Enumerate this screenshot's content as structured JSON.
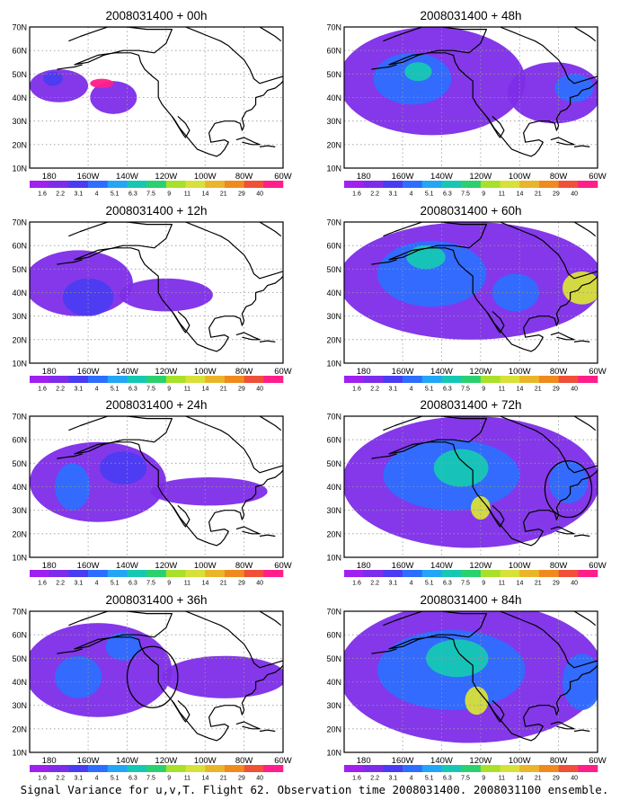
{
  "caption": "Signal Variance for u,v,T. Flight 62. Observation time 2008031400. 2008031100 ensemble.",
  "colorbar": {
    "labels": [
      "1.6",
      "2.2",
      "3.1",
      "4",
      "5.1",
      "6.3",
      "7.5",
      "9",
      "11",
      "14",
      "21",
      "29",
      "40"
    ],
    "colors": [
      "#a020f0",
      "#7d2de8",
      "#4a3cf2",
      "#2d6eff",
      "#22a6f5",
      "#16c8b4",
      "#2ad16e",
      "#a8e02a",
      "#d8e03a",
      "#e9b52a",
      "#f08a1e",
      "#f05038",
      "#ff1e8a"
    ]
  },
  "map_colors": {
    "ocean_pale": "#ffffff",
    "coast": "#000000",
    "grid": "#999999"
  },
  "chart_data": [
    {
      "type": "heatmap",
      "title": "2008031400 + 00h",
      "x_tick_labels": [
        "180",
        "160W",
        "140W",
        "120W",
        "100W",
        "80W",
        "60W"
      ],
      "y_tick_labels": [
        "10N",
        "20N",
        "30N",
        "40N",
        "50N",
        "60N",
        "70N"
      ],
      "xlim": [
        170,
        300
      ],
      "ylim": [
        10,
        70
      ],
      "features": [
        {
          "lon": 185,
          "lat": 45,
          "rlon": 15,
          "rlat": 7,
          "level": 1
        },
        {
          "lon": 182,
          "lat": 48,
          "rlon": 5,
          "rlat": 3,
          "level": 2
        },
        {
          "lon": 213,
          "lat": 40,
          "rlon": 12,
          "rlat": 7,
          "level": 1
        },
        {
          "lon": 207,
          "lat": 46,
          "rlon": 6,
          "rlat": 2,
          "level": 12
        }
      ]
    },
    {
      "type": "heatmap",
      "title": "2008031400 + 12h",
      "x_tick_labels": [
        "180",
        "160W",
        "140W",
        "120W",
        "100W",
        "80W",
        "60W"
      ],
      "y_tick_labels": [
        "10N",
        "20N",
        "30N",
        "40N",
        "50N",
        "60N",
        "70N"
      ],
      "xlim": [
        170,
        300
      ],
      "ylim": [
        10,
        70
      ],
      "features": [
        {
          "lon": 195,
          "lat": 44,
          "rlon": 28,
          "rlat": 14,
          "level": 1
        },
        {
          "lon": 240,
          "lat": 39,
          "rlon": 24,
          "rlat": 7,
          "level": 1
        },
        {
          "lon": 200,
          "lat": 38,
          "rlon": 13,
          "rlat": 8,
          "level": 2
        }
      ]
    },
    {
      "type": "heatmap",
      "title": "2008031400 + 24h",
      "x_tick_labels": [
        "180",
        "160W",
        "140W",
        "120W",
        "100W",
        "80W",
        "60W"
      ],
      "y_tick_labels": [
        "10N",
        "20N",
        "30N",
        "40N",
        "50N",
        "60N",
        "70N"
      ],
      "xlim": [
        170,
        300
      ],
      "ylim": [
        10,
        70
      ],
      "features": [
        {
          "lon": 205,
          "lat": 42,
          "rlon": 35,
          "rlat": 17,
          "level": 1
        },
        {
          "lon": 262,
          "lat": 38,
          "rlon": 30,
          "rlat": 6,
          "level": 1
        },
        {
          "lon": 192,
          "lat": 40,
          "rlon": 9,
          "rlat": 10,
          "level": 3
        },
        {
          "lon": 218,
          "lat": 48,
          "rlon": 12,
          "rlat": 7,
          "level": 2
        }
      ]
    },
    {
      "type": "heatmap",
      "title": "2008031400 + 36h",
      "x_tick_labels": [
        "180",
        "160W",
        "140W",
        "120W",
        "100W",
        "80W",
        "60W"
      ],
      "y_tick_labels": [
        "10N",
        "20N",
        "30N",
        "40N",
        "50N",
        "60N",
        "70N"
      ],
      "xlim": [
        170,
        300
      ],
      "ylim": [
        10,
        70
      ],
      "features": [
        {
          "lon": 205,
          "lat": 45,
          "rlon": 38,
          "rlat": 20,
          "level": 1
        },
        {
          "lon": 270,
          "lat": 42,
          "rlon": 32,
          "rlat": 9,
          "level": 1
        },
        {
          "lon": 195,
          "lat": 42,
          "rlon": 12,
          "rlat": 9,
          "level": 3
        },
        {
          "lon": 218,
          "lat": 55,
          "rlon": 9,
          "rlat": 6,
          "level": 3
        }
      ],
      "circle": {
        "lon": 233,
        "lat": 42,
        "rlon": 13,
        "rlat": 13
      }
    },
    {
      "type": "heatmap",
      "title": "2008031400 + 48h",
      "x_tick_labels": [
        "180",
        "160W",
        "140W",
        "120W",
        "100W",
        "80W",
        "60W"
      ],
      "y_tick_labels": [
        "10N",
        "20N",
        "30N",
        "40N",
        "50N",
        "60N",
        "70N"
      ],
      "xlim": [
        170,
        300
      ],
      "ylim": [
        10,
        70
      ],
      "features": [
        {
          "lon": 215,
          "lat": 47,
          "rlon": 48,
          "rlat": 23,
          "level": 1
        },
        {
          "lon": 278,
          "lat": 42,
          "rlon": 24,
          "rlat": 13,
          "level": 1
        },
        {
          "lon": 205,
          "lat": 48,
          "rlon": 20,
          "rlat": 11,
          "level": 3
        },
        {
          "lon": 208,
          "lat": 51,
          "rlon": 7,
          "rlat": 4,
          "level": 5
        },
        {
          "lon": 288,
          "lat": 44,
          "rlon": 10,
          "rlat": 6,
          "level": 3
        }
      ]
    },
    {
      "type": "heatmap",
      "title": "2008031400 + 60h",
      "x_tick_labels": [
        "180",
        "160W",
        "140W",
        "120W",
        "100W",
        "80W",
        "60W"
      ],
      "y_tick_labels": [
        "10N",
        "20N",
        "30N",
        "40N",
        "50N",
        "60N",
        "70N"
      ],
      "xlim": [
        170,
        300
      ],
      "ylim": [
        10,
        70
      ],
      "features": [
        {
          "lon": 235,
          "lat": 45,
          "rlon": 68,
          "rlat": 25,
          "level": 1
        },
        {
          "lon": 215,
          "lat": 48,
          "rlon": 28,
          "rlat": 14,
          "level": 3
        },
        {
          "lon": 212,
          "lat": 55,
          "rlon": 10,
          "rlat": 5,
          "level": 5
        },
        {
          "lon": 292,
          "lat": 42,
          "rlon": 10,
          "rlat": 7,
          "level": 8
        },
        {
          "lon": 258,
          "lat": 40,
          "rlon": 12,
          "rlat": 8,
          "level": 3
        }
      ]
    },
    {
      "type": "heatmap",
      "title": "2008031400 + 72h",
      "x_tick_labels": [
        "180",
        "160W",
        "140W",
        "120W",
        "100W",
        "80W",
        "60W"
      ],
      "y_tick_labels": [
        "10N",
        "20N",
        "30N",
        "40N",
        "50N",
        "60N",
        "70N"
      ],
      "xlim": [
        170,
        300
      ],
      "ylim": [
        10,
        70
      ],
      "features": [
        {
          "lon": 235,
          "lat": 42,
          "rlon": 66,
          "rlat": 28,
          "level": 1
        },
        {
          "lon": 225,
          "lat": 45,
          "rlon": 35,
          "rlat": 15,
          "level": 3
        },
        {
          "lon": 230,
          "lat": 48,
          "rlon": 14,
          "rlat": 8,
          "level": 5
        },
        {
          "lon": 240,
          "lat": 31,
          "rlon": 5,
          "rlat": 5,
          "level": 8
        },
        {
          "lon": 285,
          "lat": 42,
          "rlon": 10,
          "rlat": 9,
          "level": 3
        }
      ],
      "circle": {
        "lon": 285,
        "lat": 39,
        "rlon": 12,
        "rlat": 12
      }
    },
    {
      "type": "heatmap",
      "title": "2008031400 + 84h",
      "x_tick_labels": [
        "180",
        "160W",
        "140W",
        "120W",
        "100W",
        "80W",
        "60W"
      ],
      "y_tick_labels": [
        "10N",
        "20N",
        "30N",
        "40N",
        "50N",
        "60N",
        "70N"
      ],
      "xlim": [
        170,
        300
      ],
      "ylim": [
        10,
        70
      ],
      "features": [
        {
          "lon": 235,
          "lat": 44,
          "rlon": 68,
          "rlat": 30,
          "level": 1
        },
        {
          "lon": 225,
          "lat": 45,
          "rlon": 38,
          "rlat": 17,
          "level": 3
        },
        {
          "lon": 228,
          "lat": 50,
          "rlon": 16,
          "rlat": 8,
          "level": 5
        },
        {
          "lon": 238,
          "lat": 32,
          "rlon": 6,
          "rlat": 6,
          "level": 8
        },
        {
          "lon": 292,
          "lat": 40,
          "rlon": 10,
          "rlat": 12,
          "level": 3
        }
      ]
    }
  ]
}
